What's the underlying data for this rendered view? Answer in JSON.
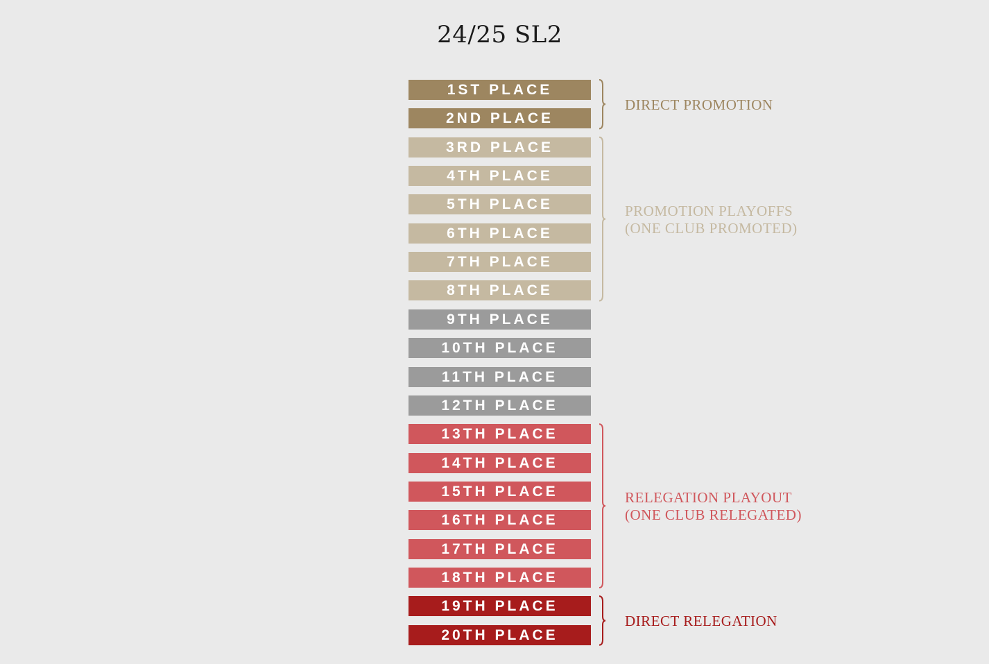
{
  "title": "24/25 SL2",
  "colors": {
    "background": "#eaeaea",
    "direct_promotion": "#9d8660",
    "promotion_playoffs": "#c5b9a1",
    "mid_table": "#9b9b9b",
    "relegation_playout": "#d0575c",
    "direct_relegation": "#a71c1c"
  },
  "places": [
    {
      "label": "1ST PLACE",
      "zone": "direct_promotion"
    },
    {
      "label": "2ND PLACE",
      "zone": "direct_promotion"
    },
    {
      "label": "3RD PLACE",
      "zone": "promotion_playoffs"
    },
    {
      "label": "4TH PLACE",
      "zone": "promotion_playoffs"
    },
    {
      "label": "5TH PLACE",
      "zone": "promotion_playoffs"
    },
    {
      "label": "6TH PLACE",
      "zone": "promotion_playoffs"
    },
    {
      "label": "7TH PLACE",
      "zone": "promotion_playoffs"
    },
    {
      "label": "8TH PLACE",
      "zone": "promotion_playoffs"
    },
    {
      "label": "9TH PLACE",
      "zone": "mid_table"
    },
    {
      "label": "10TH PLACE",
      "zone": "mid_table"
    },
    {
      "label": "11TH PLACE",
      "zone": "mid_table"
    },
    {
      "label": "12TH PLACE",
      "zone": "mid_table"
    },
    {
      "label": "13TH PLACE",
      "zone": "relegation_playout"
    },
    {
      "label": "14TH PLACE",
      "zone": "relegation_playout"
    },
    {
      "label": "15TH PLACE",
      "zone": "relegation_playout"
    },
    {
      "label": "16TH PLACE",
      "zone": "relegation_playout"
    },
    {
      "label": "17TH PLACE",
      "zone": "relegation_playout"
    },
    {
      "label": "18TH PLACE",
      "zone": "relegation_playout"
    },
    {
      "label": "19TH PLACE",
      "zone": "direct_relegation"
    },
    {
      "label": "20TH PLACE",
      "zone": "direct_relegation"
    }
  ],
  "zones": [
    {
      "id": "direct_promotion",
      "lines": [
        "DIRECT PROMOTION"
      ],
      "first_place": 1,
      "last_place": 2
    },
    {
      "id": "promotion_playoffs",
      "lines": [
        "PROMOTION PLAYOFFS",
        "(ONE CLUB PROMOTED)"
      ],
      "first_place": 3,
      "last_place": 8
    },
    {
      "id": "relegation_playout",
      "lines": [
        "RELEGATION PLAYOUT",
        "(ONE CLUB RELEGATED)"
      ],
      "first_place": 13,
      "last_place": 18
    },
    {
      "id": "direct_relegation",
      "lines": [
        "DIRECT RELEGATION"
      ],
      "first_place": 19,
      "last_place": 20
    }
  ]
}
